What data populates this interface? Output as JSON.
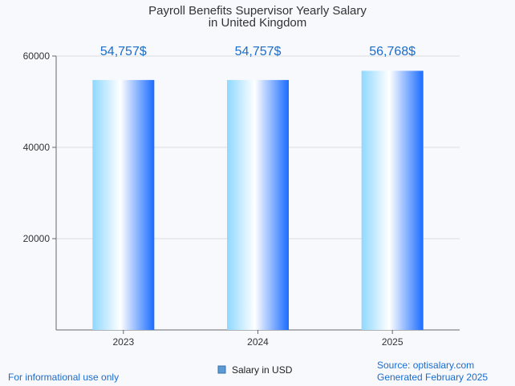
{
  "chart_data": {
    "type": "bar",
    "title_lines": [
      "Payroll Benefits Supervisor Yearly Salary",
      "in United Kingdom"
    ],
    "categories": [
      "2023",
      "2024",
      "2025"
    ],
    "values": [
      54757,
      54757,
      56768
    ],
    "data_labels": [
      "54,757$",
      "54,757$",
      "56,768$"
    ],
    "y_ticks": [
      "20000",
      "40000",
      "60000"
    ],
    "y_tick_values": [
      20000,
      40000,
      60000
    ],
    "ylim": [
      0,
      60000
    ],
    "grid": true,
    "legend": {
      "label": "Salary in USD",
      "position": "bottom-center"
    },
    "colors": {
      "bar_light": "#8fd8ff",
      "bar_white": "#ffffff",
      "bar_dark": "#1a6cff",
      "data_label": "#1a6ccc",
      "footer": "#1a6ccc",
      "legend_swatch": "#5b9bd5"
    }
  },
  "footer": {
    "left": "For informational use only",
    "source": "Source: optisalary.com",
    "generated": "Generated February 2025"
  }
}
